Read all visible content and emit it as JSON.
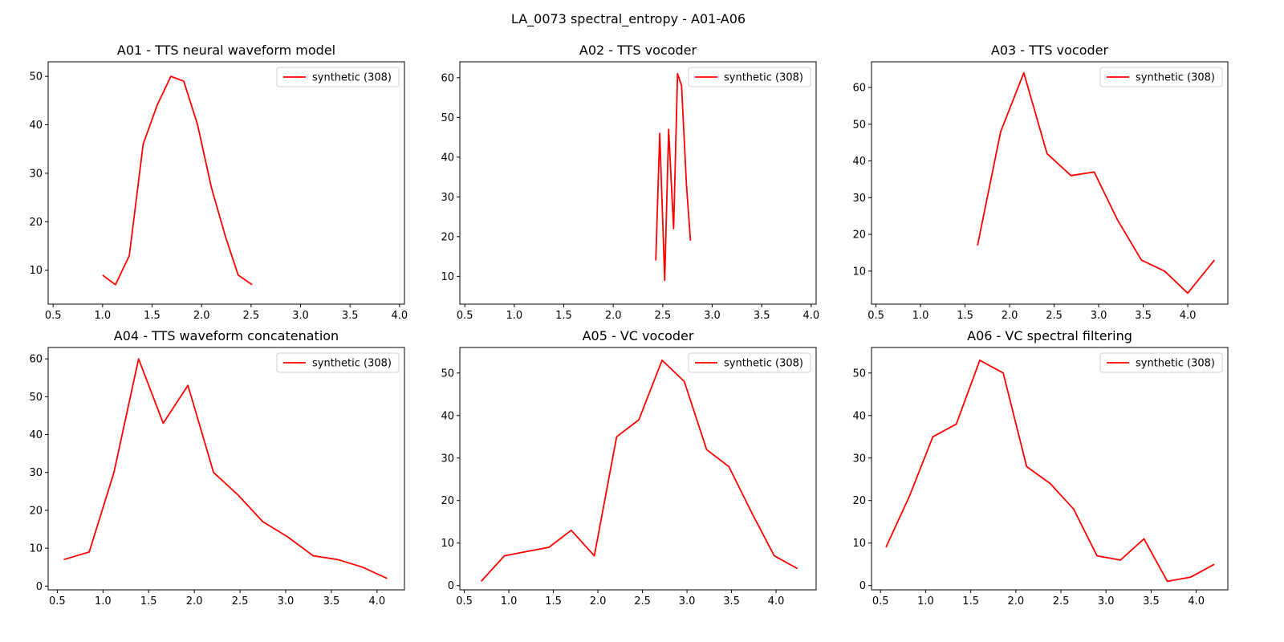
{
  "figure": {
    "suptitle": "LA_0073 spectral_entropy - A01-A06"
  },
  "chart_data": [
    {
      "type": "line",
      "title": "A01 - TTS neural waveform model",
      "xlim": [
        0.45,
        4.05
      ],
      "ylim": [
        3,
        53
      ],
      "xticks": [
        0.5,
        1.0,
        1.5,
        2.0,
        2.5,
        3.0,
        3.5,
        4.0
      ],
      "yticks": [
        10,
        20,
        30,
        40,
        50
      ],
      "legend_position": "top-right",
      "series": [
        {
          "name": "synthetic (308)",
          "color": "#ff0000",
          "x": [
            1.0,
            1.13,
            1.27,
            1.41,
            1.55,
            1.69,
            1.82,
            1.96,
            2.1,
            2.24,
            2.37,
            2.51
          ],
          "y": [
            9,
            7,
            13,
            36,
            44,
            50,
            49,
            40,
            27,
            17,
            9,
            7
          ]
        }
      ]
    },
    {
      "type": "line",
      "title": "A02 - TTS vocoder",
      "xlim": [
        0.45,
        4.05
      ],
      "ylim": [
        3,
        64
      ],
      "xticks": [
        0.5,
        1.0,
        1.5,
        2.0,
        2.5,
        3.0,
        3.5,
        4.0
      ],
      "yticks": [
        10,
        20,
        30,
        40,
        50,
        60
      ],
      "legend_position": "top-right",
      "series": [
        {
          "name": "synthetic (308)",
          "color": "#ff0000",
          "x": [
            2.43,
            2.47,
            2.52,
            2.56,
            2.61,
            2.65,
            2.69,
            2.74,
            2.78
          ],
          "y": [
            14,
            46,
            9,
            47,
            22,
            61,
            58,
            33,
            19
          ]
        }
      ]
    },
    {
      "type": "line",
      "title": "A03 - TTS vocoder",
      "xlim": [
        0.45,
        4.45
      ],
      "ylim": [
        1,
        67
      ],
      "xticks": [
        0.5,
        1.0,
        1.5,
        2.0,
        2.5,
        3.0,
        3.5,
        4.0
      ],
      "yticks": [
        10,
        20,
        30,
        40,
        50,
        60
      ],
      "legend_position": "top-right",
      "series": [
        {
          "name": "synthetic (308)",
          "color": "#ff0000",
          "x": [
            1.64,
            1.9,
            2.16,
            2.42,
            2.69,
            2.95,
            3.21,
            3.48,
            3.74,
            4.0,
            4.3
          ],
          "y": [
            17,
            48,
            64,
            42,
            36,
            37,
            24,
            13,
            10,
            4,
            13
          ]
        }
      ]
    },
    {
      "type": "line",
      "title": "A04 - TTS waveform concatenation",
      "xlim": [
        0.4,
        4.3
      ],
      "ylim": [
        -1,
        63
      ],
      "xticks": [
        0.5,
        1.0,
        1.5,
        2.0,
        2.5,
        3.0,
        3.5,
        4.0
      ],
      "yticks": [
        0,
        10,
        20,
        30,
        40,
        50,
        60
      ],
      "legend_position": "top-right",
      "series": [
        {
          "name": "synthetic (308)",
          "color": "#ff0000",
          "x": [
            0.57,
            0.85,
            1.12,
            1.39,
            1.66,
            1.93,
            2.21,
            2.48,
            2.75,
            3.02,
            3.3,
            3.57,
            3.84,
            4.11
          ],
          "y": [
            7,
            9,
            30,
            60,
            43,
            53,
            30,
            24,
            17,
            13,
            8,
            7,
            5,
            2
          ]
        }
      ]
    },
    {
      "type": "line",
      "title": "A05 - VC vocoder",
      "xlim": [
        0.45,
        4.45
      ],
      "ylim": [
        -1,
        56
      ],
      "xticks": [
        0.5,
        1.0,
        1.5,
        2.0,
        2.5,
        3.0,
        3.5,
        4.0
      ],
      "yticks": [
        0,
        10,
        20,
        30,
        40,
        50
      ],
      "legend_position": "top-right",
      "series": [
        {
          "name": "synthetic (308)",
          "color": "#ff0000",
          "x": [
            0.69,
            0.95,
            1.2,
            1.45,
            1.7,
            1.96,
            2.21,
            2.46,
            2.72,
            2.97,
            3.22,
            3.47,
            3.73,
            3.98,
            4.24
          ],
          "y": [
            1,
            7,
            8,
            9,
            13,
            7,
            35,
            39,
            53,
            48,
            32,
            28,
            17,
            7,
            4
          ]
        }
      ]
    },
    {
      "type": "line",
      "title": "A06 - VC spectral filtering",
      "xlim": [
        0.4,
        4.35
      ],
      "ylim": [
        -1,
        56
      ],
      "xticks": [
        0.5,
        1.0,
        1.5,
        2.0,
        2.5,
        3.0,
        3.5,
        4.0
      ],
      "yticks": [
        0,
        10,
        20,
        30,
        40,
        50
      ],
      "legend_position": "top-right",
      "series": [
        {
          "name": "synthetic (308)",
          "color": "#ff0000",
          "x": [
            0.56,
            0.82,
            1.08,
            1.34,
            1.6,
            1.86,
            2.12,
            2.38,
            2.64,
            2.9,
            3.16,
            3.42,
            3.68,
            3.94,
            4.2
          ],
          "y": [
            9,
            21,
            35,
            38,
            53,
            50,
            28,
            24,
            18,
            7,
            6,
            11,
            1,
            2,
            5
          ]
        }
      ]
    }
  ]
}
